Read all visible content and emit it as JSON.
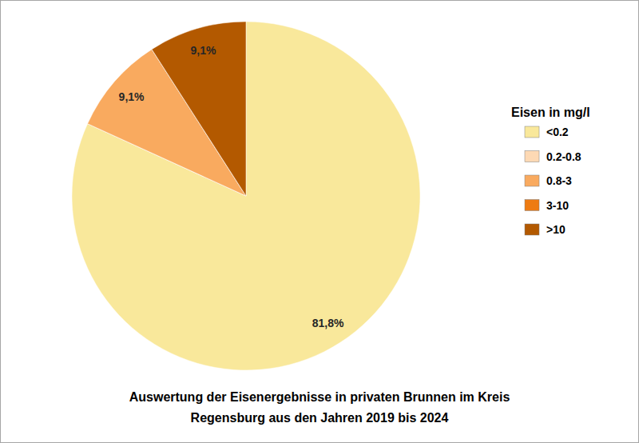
{
  "chart_data": {
    "type": "pie",
    "title": [
      "Auswertung der Eisenergebnisse in privaten Brunnen im Kreis",
      "Regensburg aus den Jahren 2019 bis 2024"
    ],
    "legend_title": "Eisen in mg/l",
    "categories": [
      "<0.2",
      "0.2-0.8",
      "0.8-3",
      "3-10",
      ">10"
    ],
    "values": [
      81.8,
      0,
      9.1,
      0,
      9.1
    ],
    "value_labels": [
      "81,8%",
      null,
      "9,1%",
      null,
      "9,1%"
    ],
    "colors": [
      "#f9e89b",
      "#fdd9b4",
      "#f9aa5f",
      "#ee7b12",
      "#b35900"
    ],
    "data_labels": true,
    "legend": "right"
  }
}
